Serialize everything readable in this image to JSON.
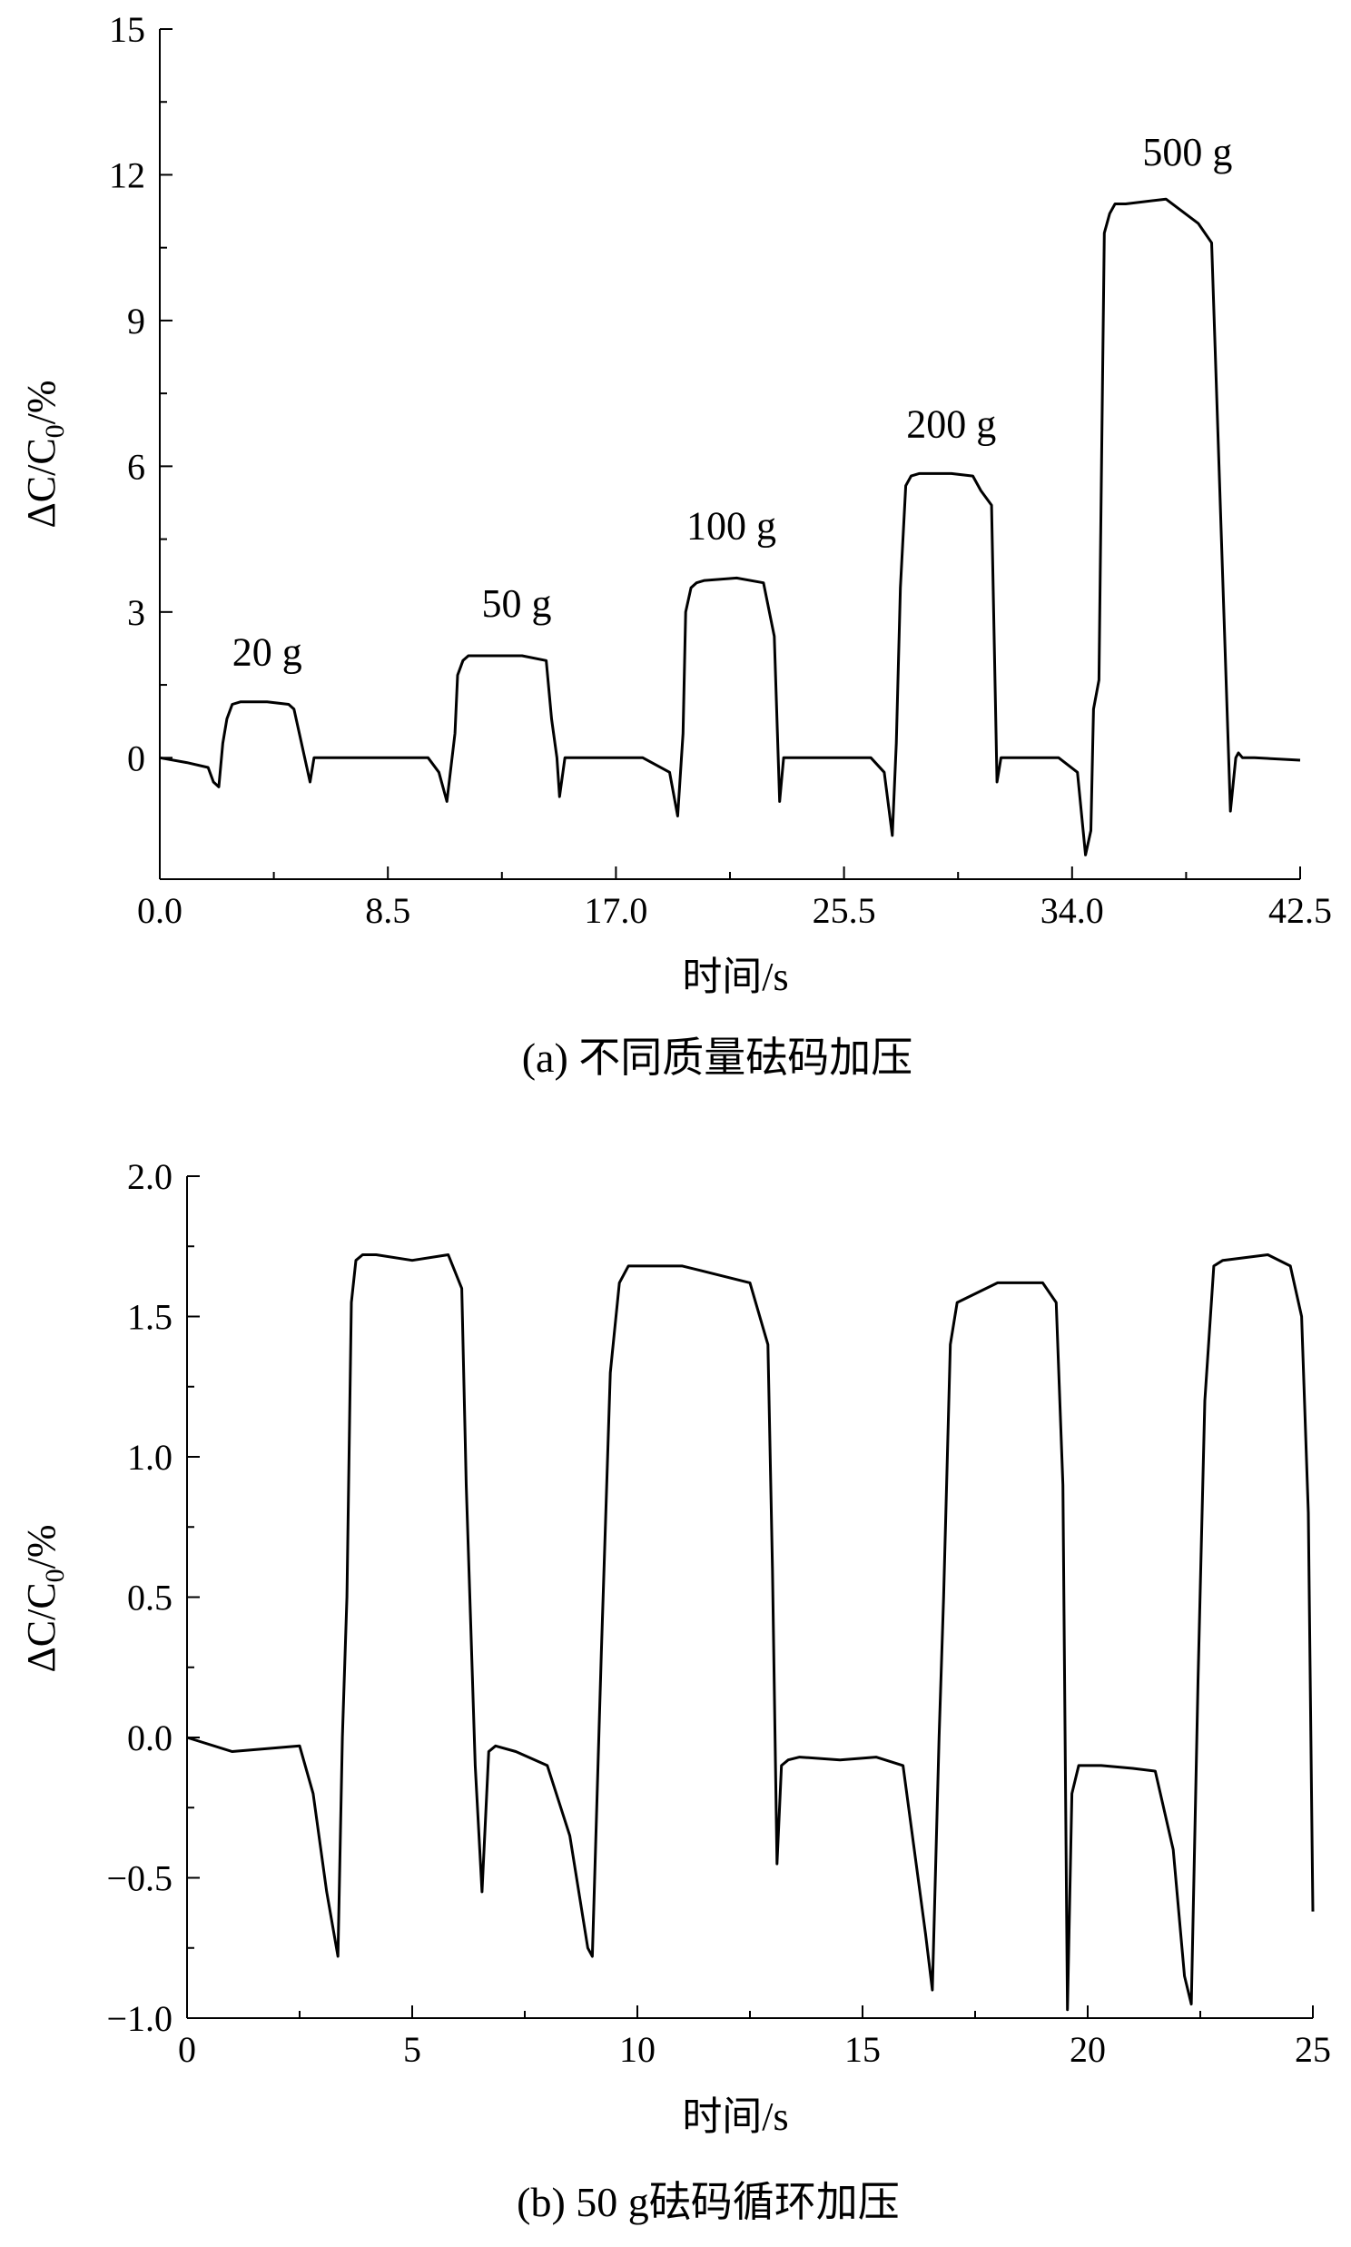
{
  "chart_data": [
    {
      "type": "line",
      "caption": "(a) 不同质量砝码加压",
      "xlabel": "时间/s",
      "ylabel": "ΔC/C0/%",
      "xlim": [
        0,
        42.5
      ],
      "ylim": [
        -2.5,
        15
      ],
      "x_ticks": [
        0,
        8.5,
        17,
        25.5,
        34,
        42.5
      ],
      "x_tick_labels": [
        "0.0",
        "8.5",
        "17.0",
        "25.5",
        "34.0",
        "42.5"
      ],
      "y_ticks": [
        0,
        3,
        6,
        9,
        12,
        15
      ],
      "y_tick_labels": [
        "0",
        "3",
        "6",
        "9",
        "12",
        "15"
      ],
      "grid": false,
      "annotations": [
        {
          "text": "20 g",
          "x": 4.0,
          "y": 1.9
        },
        {
          "text": "50 g",
          "x": 13.3,
          "y": 2.9
        },
        {
          "text": "100 g",
          "x": 21.3,
          "y": 4.5
        },
        {
          "text": "200 g",
          "x": 29.5,
          "y": 6.6
        },
        {
          "text": "500 g",
          "x": 38.3,
          "y": 12.2
        }
      ],
      "series": [
        {
          "color": "#000000",
          "x": [
            0.0,
            1.0,
            1.8,
            2.0,
            2.2,
            2.35,
            2.5,
            2.7,
            3.0,
            4.0,
            4.8,
            5.0,
            5.2,
            5.4,
            5.6,
            5.75,
            6.0,
            8.0,
            10.0,
            10.4,
            10.7,
            11.0,
            11.1,
            11.3,
            11.5,
            12.0,
            13.5,
            14.4,
            14.6,
            14.8,
            14.9,
            15.1,
            16.0,
            18.0,
            19.0,
            19.3,
            19.5,
            19.6,
            19.8,
            20.0,
            20.3,
            21.5,
            22.5,
            22.9,
            23.1,
            23.25,
            23.4,
            23.6,
            24.5,
            26.5,
            27.0,
            27.3,
            27.45,
            27.6,
            27.8,
            28.0,
            28.3,
            29.5,
            30.3,
            30.6,
            31.0,
            31.2,
            31.35,
            31.5,
            31.7,
            33.5,
            34.2,
            34.5,
            34.7,
            34.8,
            35.0,
            35.2,
            35.4,
            35.6,
            36.0,
            37.5,
            38.7,
            39.2,
            39.9,
            40.1,
            40.2,
            40.35,
            40.5,
            40.8,
            42.5
          ],
          "y": [
            0.0,
            -0.1,
            -0.2,
            -0.5,
            -0.6,
            0.3,
            0.8,
            1.1,
            1.15,
            1.15,
            1.1,
            1.0,
            0.5,
            0.0,
            -0.5,
            0.0,
            0.0,
            0.0,
            0.0,
            -0.3,
            -0.9,
            0.5,
            1.7,
            2.0,
            2.1,
            2.1,
            2.1,
            2.0,
            0.8,
            0.0,
            -0.8,
            0.0,
            0.0,
            0.0,
            -0.3,
            -1.2,
            0.5,
            3.0,
            3.5,
            3.6,
            3.65,
            3.7,
            3.6,
            2.5,
            -0.9,
            0.0,
            0.0,
            0.0,
            0.0,
            0.0,
            -0.3,
            -1.6,
            0.3,
            3.5,
            5.6,
            5.8,
            5.85,
            5.85,
            5.8,
            5.5,
            5.2,
            -0.5,
            0.0,
            0.0,
            0.0,
            0.0,
            -0.3,
            -2.0,
            -1.5,
            1.0,
            1.6,
            10.8,
            11.2,
            11.4,
            11.4,
            11.5,
            11.0,
            10.6,
            -1.1,
            0.0,
            0.1,
            0.0,
            0.0,
            0.0,
            -0.05
          ]
        }
      ]
    },
    {
      "type": "line",
      "caption": "(b) 50 g砝码循环加压",
      "xlabel": "时间/s",
      "ylabel": "ΔC/C0/%",
      "xlim": [
        0,
        25
      ],
      "ylim": [
        -1.0,
        2.0
      ],
      "x_ticks": [
        0,
        5,
        10,
        15,
        20,
        25
      ],
      "x_tick_labels": [
        "0",
        "5",
        "10",
        "15",
        "20",
        "25"
      ],
      "y_ticks": [
        -1.0,
        -0.5,
        0.0,
        0.5,
        1.0,
        1.5,
        2.0
      ],
      "y_tick_labels": [
        "−1.0",
        "−0.5",
        "0.0",
        "0.5",
        "1.0",
        "1.5",
        "2.0"
      ],
      "grid": false,
      "series": [
        {
          "color": "#000000",
          "x": [
            0.0,
            1.0,
            2.5,
            2.8,
            3.1,
            3.35,
            3.45,
            3.55,
            3.65,
            3.75,
            3.9,
            4.2,
            5.0,
            5.8,
            6.1,
            6.2,
            6.3,
            6.4,
            6.55,
            6.7,
            6.85,
            7.3,
            8.0,
            8.5,
            8.9,
            9.0,
            9.2,
            9.4,
            9.6,
            9.8,
            11.0,
            12.5,
            12.9,
            13.0,
            13.1,
            13.2,
            13.35,
            13.6,
            14.5,
            15.3,
            15.9,
            16.4,
            16.55,
            16.7,
            16.8,
            16.95,
            17.1,
            18.0,
            19.0,
            19.3,
            19.45,
            19.55,
            19.65,
            19.8,
            20.3,
            21.0,
            21.5,
            21.9,
            22.15,
            22.3,
            22.45,
            22.6,
            22.8,
            23.0,
            24.0,
            24.5,
            24.75,
            24.9,
            25.0
          ],
          "y": [
            0.0,
            -0.05,
            -0.03,
            -0.2,
            -0.55,
            -0.78,
            0.0,
            0.5,
            1.55,
            1.7,
            1.72,
            1.72,
            1.7,
            1.72,
            1.6,
            0.9,
            0.4,
            -0.1,
            -0.55,
            -0.05,
            -0.03,
            -0.05,
            -0.1,
            -0.35,
            -0.75,
            -0.78,
            0.3,
            1.3,
            1.62,
            1.68,
            1.68,
            1.62,
            1.4,
            0.6,
            -0.45,
            -0.1,
            -0.08,
            -0.07,
            -0.08,
            -0.07,
            -0.1,
            -0.7,
            -0.9,
            0.0,
            0.5,
            1.4,
            1.55,
            1.62,
            1.62,
            1.55,
            0.9,
            -0.97,
            -0.2,
            -0.1,
            -0.1,
            -0.11,
            -0.12,
            -0.4,
            -0.85,
            -0.95,
            0.2,
            1.2,
            1.68,
            1.7,
            1.72,
            1.68,
            1.5,
            0.8,
            -0.62
          ]
        }
      ]
    }
  ]
}
